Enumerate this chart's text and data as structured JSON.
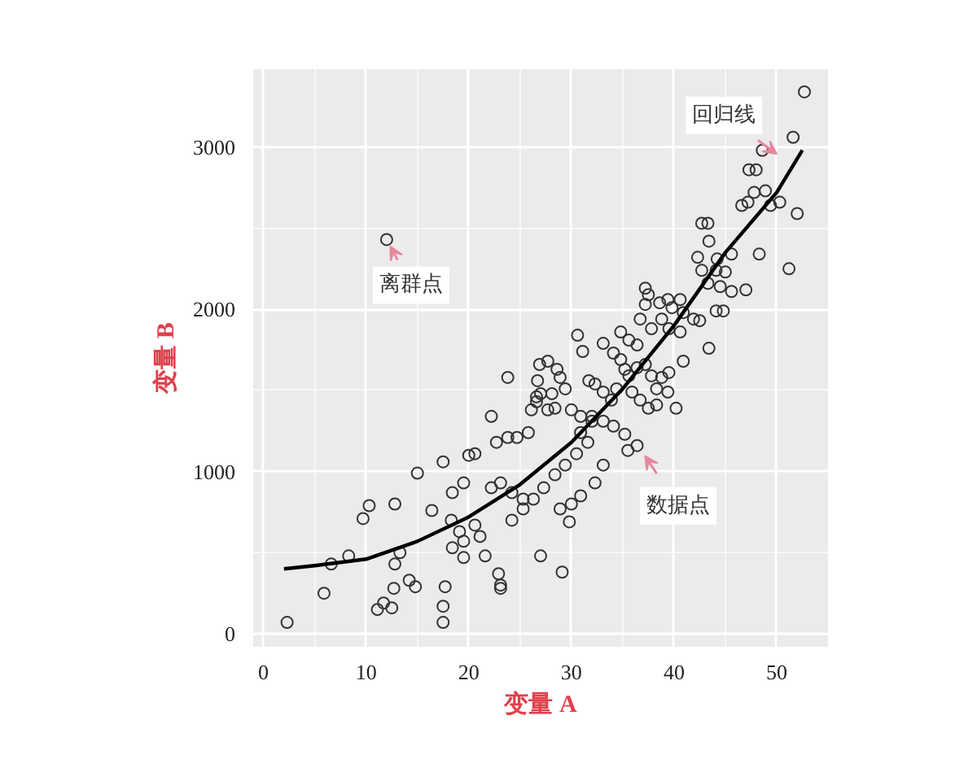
{
  "chart_data": {
    "type": "scatter",
    "xlabel": "变量 A",
    "ylabel": "变量 B",
    "xlim": [
      -1,
      55
    ],
    "ylim": [
      -80,
      3480
    ],
    "xticks": [
      0,
      10,
      20,
      30,
      40,
      50
    ],
    "yticks": [
      0,
      1000,
      2000,
      3000
    ],
    "grid": true,
    "marker": "circle",
    "series": [
      {
        "color": "#333333",
        "x": [
          2.3,
          5.9,
          8.3,
          6.6,
          9.7,
          10.3,
          12.8,
          12.0,
          11.1,
          11.7,
          12.5,
          12.7,
          14.2,
          14.8,
          15.0,
          17.5,
          17.5,
          17.5,
          17.7,
          20.0,
          20.6,
          22.2,
          23.8,
          23.1,
          22.9,
          16.4,
          13.3,
          12.8,
          18.3,
          19.1,
          19.5,
          20.6,
          21.1,
          21.6,
          18.4,
          19.5,
          22.2,
          23.1,
          24.2,
          25.3,
          22.7,
          23.8,
          24.7,
          25.8,
          26.1,
          26.6,
          26.7,
          26.9,
          18.4,
          19.5,
          52.7,
          51.6,
          48.6,
          47.3,
          48.0,
          46.6,
          47.2,
          47.8,
          48.9,
          49.4,
          50.3,
          52.0,
          51.2,
          48.3,
          42.7,
          43.3,
          43.4,
          42.3,
          44.2,
          45.6,
          42.7,
          44.1,
          45.0,
          43.3,
          44.5,
          45.6,
          47.0,
          44.1,
          44.8,
          41.9,
          42.5,
          43.4,
          40.6,
          40.9,
          39.8,
          38.6,
          39.4,
          37.2,
          37.5,
          37.2,
          36.7,
          37.8,
          38.8,
          39.5,
          40.6,
          34.8,
          35.6,
          36.4,
          33.1,
          34.1,
          34.8,
          30.6,
          31.1,
          35.2,
          35.6,
          36.4,
          37.2,
          37.8,
          38.8,
          39.5,
          40.9,
          38.3,
          39.4,
          40.2,
          35.9,
          36.7,
          37.5,
          38.3,
          31.7,
          32.3,
          33.1,
          33.9,
          34.4,
          27.7,
          28.6,
          28.9,
          29.4,
          28.1,
          27.0,
          26.6,
          27.7,
          28.4,
          30.0,
          30.9,
          32.0,
          33.1,
          34.1,
          35.2,
          36.4,
          35.5,
          33.1,
          32.3,
          31.6,
          30.5,
          29.4,
          28.4,
          27.3,
          26.3,
          25.3,
          24.2,
          28.9,
          30.0,
          30.9,
          29.8,
          27.0,
          29.1,
          23.1,
          32.0,
          30.9
        ],
        "values": [
          70,
          250,
          480,
          430,
          710,
          790,
          800,
          2430,
          150,
          190,
          160,
          280,
          330,
          290,
          990,
          1060,
          70,
          170,
          290,
          1100,
          1110,
          1340,
          1580,
          300,
          370,
          760,
          500,
          430,
          700,
          630,
          570,
          670,
          600,
          480,
          870,
          930,
          900,
          930,
          870,
          830,
          1180,
          1210,
          1210,
          1240,
          1380,
          1460,
          1560,
          1660,
          530,
          470,
          3340,
          3060,
          2980,
          2860,
          2860,
          2640,
          2660,
          2720,
          2730,
          2640,
          2660,
          2590,
          2250,
          2340,
          2530,
          2530,
          2420,
          2320,
          2310,
          2340,
          2240,
          2240,
          2230,
          2160,
          2140,
          2110,
          2120,
          1990,
          1990,
          1940,
          1930,
          1760,
          2060,
          1980,
          2010,
          2040,
          2060,
          2130,
          2090,
          2030,
          1940,
          1880,
          1940,
          1880,
          1860,
          1860,
          1810,
          1780,
          1790,
          1730,
          1690,
          1840,
          1740,
          1630,
          1590,
          1640,
          1660,
          1590,
          1580,
          1610,
          1680,
          1510,
          1490,
          1390,
          1490,
          1440,
          1390,
          1410,
          1560,
          1540,
          1490,
          1440,
          1510,
          1680,
          1630,
          1580,
          1510,
          1480,
          1480,
          1430,
          1380,
          1390,
          1380,
          1340,
          1340,
          1310,
          1280,
          1230,
          1160,
          1130,
          1040,
          930,
          1180,
          1110,
          1040,
          980,
          900,
          830,
          770,
          700,
          770,
          800,
          850,
          690,
          480,
          380,
          280,
          1310,
          1240
        ]
      },
      {
        "type": "line",
        "color": "#000000",
        "marker": "none",
        "line_style": "solid",
        "x": [
          2,
          5,
          10,
          15,
          20,
          25,
          30,
          35,
          40,
          45,
          50,
          52.5
        ],
        "values": [
          400,
          420,
          460,
          570,
          720,
          920,
          1180,
          1510,
          1900,
          2350,
          2720,
          2980
        ]
      }
    ],
    "annotations": [
      {
        "text": "离群点",
        "x": 12.0,
        "y": 2430
      },
      {
        "text": "回归线",
        "x": 50.9,
        "y": 2915
      },
      {
        "text": "数据点",
        "x": 36.6,
        "y": 1150
      }
    ]
  }
}
